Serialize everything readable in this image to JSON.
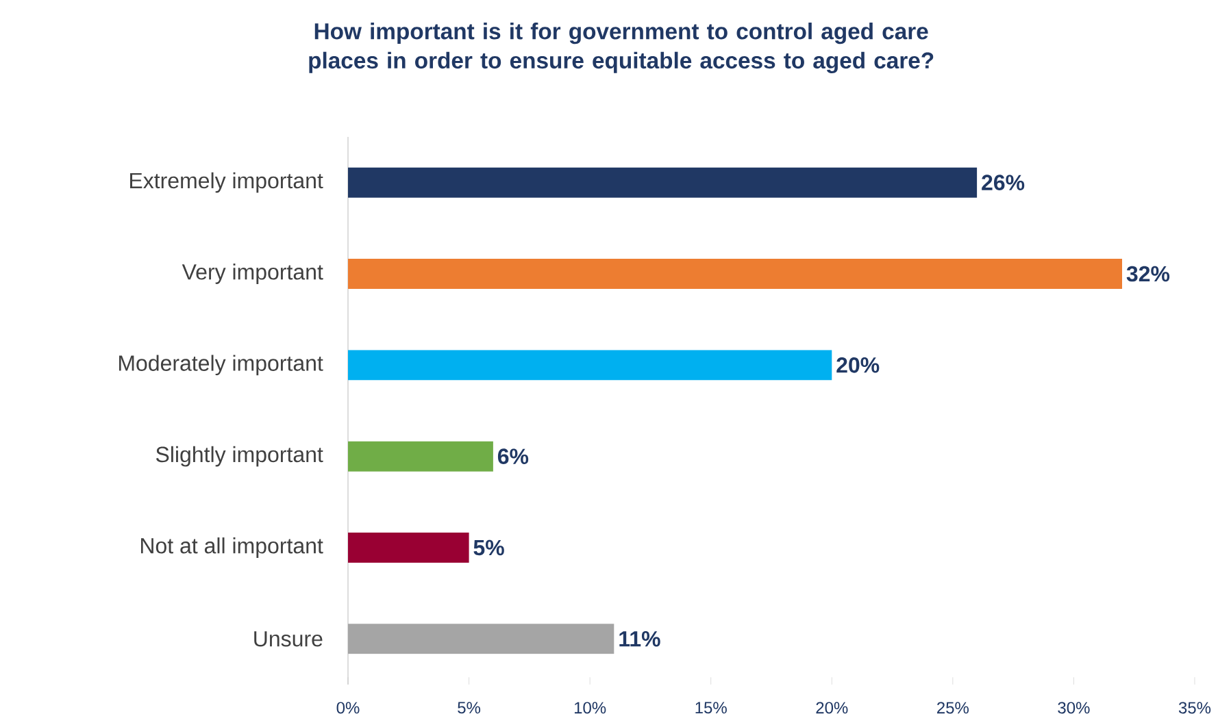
{
  "chart_data": {
    "type": "bar",
    "orientation": "horizontal",
    "title": "How important is it for government to control aged care places in order to ensure equitable access to aged care?",
    "categories": [
      "Extremely important",
      "Very important",
      "Moderately important",
      "Slightly important",
      "Not at all important",
      "Unsure"
    ],
    "values": [
      26,
      32,
      20,
      6,
      5,
      11
    ],
    "colors": [
      "#203864",
      "#ed7d31",
      "#00b0f0",
      "#70ad47",
      "#990033",
      "#a5a5a5"
    ],
    "value_labels": [
      "26%",
      "32%",
      "20%",
      "6%",
      "5%",
      "11%"
    ],
    "xlim": [
      0,
      35
    ],
    "xticks": [
      {
        "value": 0,
        "label": "0%"
      },
      {
        "value": 5,
        "label": "5%"
      },
      {
        "value": 10,
        "label": "10%"
      },
      {
        "value": 15,
        "label": "15%"
      },
      {
        "value": 20,
        "label": "20%"
      },
      {
        "value": 25,
        "label": "25%"
      },
      {
        "value": 30,
        "label": "30%"
      },
      {
        "value": 35,
        "label": "35%"
      }
    ],
    "grid": false
  }
}
